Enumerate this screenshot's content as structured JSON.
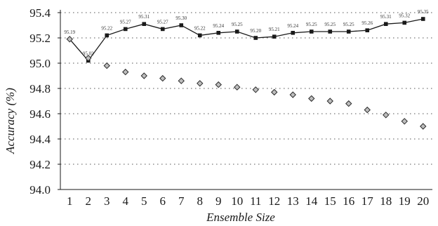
{
  "chart_data": {
    "type": "line",
    "xlabel": "Ensemble Size",
    "ylabel": "Accuracy (%)",
    "x": [
      1,
      2,
      3,
      4,
      5,
      6,
      7,
      8,
      9,
      10,
      11,
      12,
      13,
      14,
      15,
      16,
      17,
      18,
      19,
      20
    ],
    "ylim": [
      94.0,
      95.4
    ],
    "yticks": [
      "94.0",
      "94.2",
      "94.4",
      "94.6",
      "94.8",
      "95.0",
      "95.2",
      "95.4"
    ],
    "xticks": [
      "1",
      "2",
      "3",
      "4",
      "5",
      "6",
      "7",
      "8",
      "9",
      "10",
      "11",
      "12",
      "13",
      "14",
      "15",
      "16",
      "17",
      "18",
      "19",
      "20"
    ],
    "grid": "horizontal dotted",
    "legend": "none",
    "series": [
      {
        "marker": "square",
        "line": "solid",
        "color": "#1a1a1a",
        "values": [
          95.19,
          95.02,
          95.22,
          95.27,
          95.31,
          95.27,
          95.3,
          95.22,
          95.24,
          95.25,
          95.2,
          95.21,
          95.24,
          95.25,
          95.25,
          95.25,
          95.26,
          95.31,
          95.32,
          95.35
        ],
        "labels": [
          "95.19",
          "95.02",
          "95.22",
          "95.27",
          "95.31",
          "95.27",
          "95.30",
          "95.22",
          "95.24",
          "95.25",
          "95.20",
          "95.21",
          "95.24",
          "95.25",
          "95.25",
          "95.25",
          "95.26",
          "95.31",
          "95.32",
          "95.35"
        ]
      },
      {
        "marker": "diamond",
        "line": "none",
        "color": "#555555",
        "values": [
          95.19,
          95.04,
          94.98,
          94.93,
          94.9,
          94.88,
          94.86,
          94.84,
          94.83,
          94.81,
          94.79,
          94.77,
          94.75,
          94.72,
          94.7,
          94.68,
          94.63,
          94.59,
          94.54,
          94.5
        ]
      }
    ]
  }
}
